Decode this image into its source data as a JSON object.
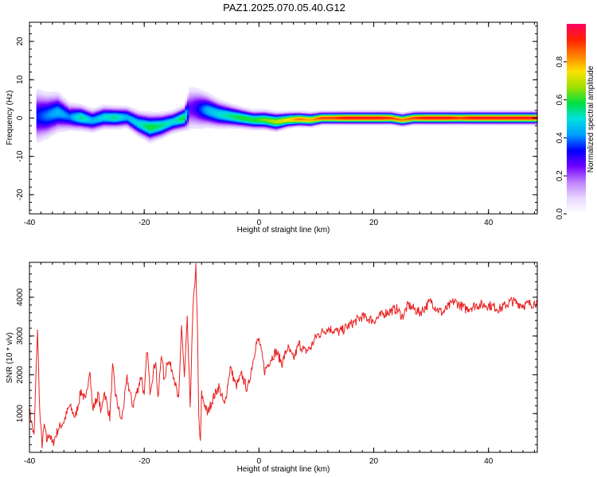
{
  "title": "PAZ1.2025.070.05.40.G12",
  "chart_data": [
    {
      "type": "heatmap",
      "xlabel": "Height of straight line (km)",
      "ylabel": "Frequency (Hz)",
      "xlim": [
        -40,
        48.5
      ],
      "ylim": [
        -25,
        25
      ],
      "xticks": [
        -40,
        -20,
        0,
        20,
        40
      ],
      "yticks": [
        -20,
        -10,
        0,
        10,
        20
      ],
      "colorbar": {
        "label": "Normalized spectral amplitude",
        "range": [
          0.0,
          1.0
        ],
        "ticks": [
          0.0,
          0.2,
          0.4,
          0.6,
          0.8
        ],
        "tick_labels": [
          "0.0",
          "0.2",
          "0.4",
          "0.6",
          "0.8"
        ],
        "colors": [
          "#ffffff",
          "#e8d8ff",
          "#c080ff",
          "#7000ff",
          "#0000ff",
          "#00a0ff",
          "#00e0e0",
          "#00e040",
          "#a0e000",
          "#ffe000",
          "#ff8000",
          "#ff2000",
          "#ff0060"
        ]
      },
      "ridge": {
        "x": [
          -38.5,
          -37,
          -35,
          -33,
          -31,
          -29,
          -27,
          -25,
          -23,
          -21,
          -19,
          -17,
          -15,
          -13,
          -12,
          -11,
          -9,
          -7,
          -5,
          -3,
          -1,
          1,
          3,
          5,
          7,
          9,
          11,
          13,
          15,
          17,
          19,
          21,
          23,
          25,
          27,
          29,
          31,
          33,
          35,
          37,
          39,
          41,
          43,
          45,
          47,
          48.5
        ],
        "frequency": [
          0.5,
          0.6,
          1.5,
          0.3,
          0.1,
          -0.7,
          0.2,
          0.1,
          0.2,
          -1.5,
          -2.5,
          -2.0,
          -1.0,
          0.0,
          2.5,
          2.5,
          2.0,
          1.0,
          0.5,
          0.0,
          -0.5,
          -0.5,
          -1.0,
          -0.5,
          -0.3,
          -0.5,
          0.0,
          0.0,
          0.0,
          0.0,
          0.0,
          0.0,
          0.0,
          -0.5,
          0.0,
          0.0,
          0.0,
          0.0,
          0.0,
          0.0,
          0.0,
          0.0,
          0.0,
          0.0,
          0.0,
          0.0
        ],
        "amplitude": [
          0.35,
          0.4,
          0.45,
          0.4,
          0.55,
          0.45,
          0.5,
          0.55,
          0.45,
          0.5,
          0.6,
          0.55,
          0.5,
          0.6,
          0.25,
          0.3,
          0.45,
          0.5,
          0.55,
          0.6,
          0.6,
          0.65,
          0.7,
          0.75,
          0.85,
          0.8,
          0.9,
          0.9,
          0.95,
          0.95,
          0.95,
          0.95,
          0.9,
          0.85,
          0.9,
          0.95,
          0.95,
          0.95,
          0.9,
          0.95,
          0.95,
          0.95,
          0.95,
          0.95,
          0.95,
          0.95
        ],
        "spread_hz": [
          3.5,
          3.0,
          2.5,
          1.8,
          1.6,
          1.5,
          1.5,
          1.4,
          1.4,
          1.6,
          1.8,
          1.6,
          1.4,
          1.5,
          3.0,
          2.8,
          2.2,
          1.8,
          1.5,
          1.3,
          1.2,
          1.2,
          1.2,
          1.0,
          0.9,
          0.9,
          0.8,
          0.8,
          0.8,
          0.8,
          0.8,
          0.8,
          0.8,
          0.8,
          0.8,
          0.8,
          0.8,
          0.8,
          0.8,
          0.8,
          0.8,
          0.8,
          0.8,
          0.8,
          0.8,
          0.8
        ]
      }
    },
    {
      "type": "line",
      "xlabel": "Height of straight line (km)",
      "ylabel": "SNR (10 * v/v)",
      "xlim": [
        -40,
        48.5
      ],
      "ylim": [
        0,
        4900
      ],
      "xticks": [
        -40,
        -20,
        0,
        20,
        40
      ],
      "yticks": [
        1000,
        2000,
        3000,
        4000
      ],
      "color": "#e82020",
      "series": [
        {
          "x": [
            -40,
            -39.2,
            -38.6,
            -38.2,
            -37.8,
            -37.4,
            -37,
            -36.5,
            -36,
            -35,
            -34,
            -33,
            -32,
            -31,
            -30.2,
            -29.5,
            -29,
            -28,
            -27.5,
            -27,
            -26,
            -25.5,
            -25,
            -24,
            -23.5,
            -23,
            -22,
            -21,
            -20.5,
            -20,
            -19.5,
            -19,
            -18,
            -17.6,
            -17,
            -16.5,
            -16,
            -15,
            -14,
            -13.5,
            -13,
            -12.5,
            -12,
            -11.5,
            -11,
            -10.7,
            -10.5,
            -10.2,
            -10,
            -9,
            -8,
            -7,
            -6,
            -5,
            -4,
            -3,
            -2,
            -1,
            -0.5,
            0,
            1,
            2,
            3,
            4,
            5,
            6,
            7,
            8,
            9,
            10,
            12,
            14,
            16,
            18,
            20,
            22,
            24,
            25,
            26,
            28,
            30,
            31,
            32,
            34,
            36,
            38,
            40,
            42,
            44,
            46,
            48,
            48.5
          ],
          "values": [
            1100,
            400,
            3200,
            1000,
            200,
            700,
            300,
            500,
            200,
            600,
            800,
            1200,
            900,
            1600,
            1300,
            2200,
            1100,
            1500,
            1000,
            1600,
            900,
            2200,
            1500,
            800,
            1300,
            1900,
            1200,
            1700,
            2000,
            1400,
            2700,
            1600,
            2400,
            1300,
            2600,
            1800,
            2400,
            2100,
            1300,
            3300,
            1900,
            3400,
            1200,
            3700,
            4800,
            3000,
            900,
            200,
            1500,
            1000,
            1400,
            1700,
            1200,
            2200,
            1700,
            2000,
            1600,
            2400,
            2800,
            2900,
            2100,
            2400,
            2600,
            2300,
            2700,
            2400,
            2800,
            2600,
            2700,
            3000,
            3200,
            3100,
            3300,
            3500,
            3400,
            3600,
            3700,
            3500,
            3800,
            3600,
            3900,
            3700,
            3600,
            3900,
            3700,
            3800,
            3800,
            3700,
            3900,
            3800,
            3850,
            3900
          ]
        }
      ]
    }
  ]
}
